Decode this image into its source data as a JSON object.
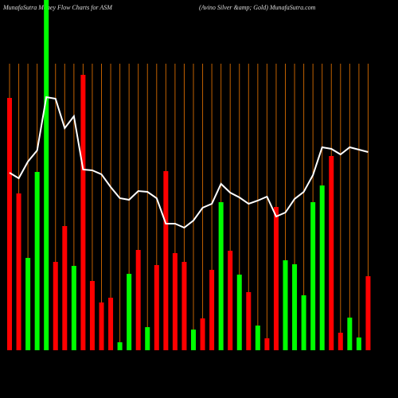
{
  "chart_data": {
    "type": "bar-line",
    "title": "MunafaSutra  Money Flow  Charts for ASM",
    "subtitle": "(Avino  Silver &amp; Gold) MunafaSutra.com",
    "categories": [
      null,
      null,
      null,
      null,
      null,
      null,
      null,
      null,
      null,
      null,
      null,
      null,
      null,
      null,
      null,
      null,
      null,
      null,
      null,
      null,
      null,
      null,
      null,
      null,
      null,
      null,
      null,
      null,
      null,
      null,
      null,
      null,
      null,
      null,
      null,
      null,
      null,
      null,
      null,
      null
    ],
    "ylim": [
      0,
      440
    ],
    "grid": true,
    "grid_color": "#c06000",
    "series": [
      {
        "type": "bar",
        "values": [
          317,
          197,
          116,
          224,
          440,
          111,
          156,
          106,
          346,
          87,
          60,
          66,
          10,
          96,
          126,
          29,
          107,
          225,
          122,
          111,
          26,
          40,
          101,
          186,
          125,
          95,
          73,
          31,
          15,
          180,
          113,
          108,
          69,
          186,
          207,
          244,
          22,
          41,
          16,
          93
        ],
        "colors": [
          "#ff0000",
          "#ff0000",
          "#00ff00",
          "#00ff00",
          "#00ff00",
          "#ff0000",
          "#ff0000",
          "#00ff00",
          "#ff0000",
          "#ff0000",
          "#ff0000",
          "#ff0000",
          "#00ff00",
          "#00ff00",
          "#ff0000",
          "#00ff00",
          "#ff0000",
          "#ff0000",
          "#ff0000",
          "#ff0000",
          "#00ff00",
          "#ff0000",
          "#ff0000",
          "#00ff00",
          "#ff0000",
          "#00ff00",
          "#ff0000",
          "#00ff00",
          "#ff0000",
          "#ff0000",
          "#00ff00",
          "#00ff00",
          "#00ff00",
          "#00ff00",
          "#00ff00",
          "#ff0000",
          "#ff0000",
          "#00ff00",
          "#00ff00",
          "#ff0000"
        ]
      },
      {
        "type": "line",
        "color": "#ffffff",
        "values": [
          223,
          216,
          237,
          251,
          318,
          316,
          279,
          294,
          227,
          226,
          221,
          205,
          191,
          189,
          200,
          199,
          191,
          159,
          159,
          154,
          163,
          179,
          184,
          209,
          198,
          192,
          184,
          188,
          193,
          168,
          173,
          190,
          199,
          220,
          255,
          253,
          246,
          255,
          252,
          249
        ]
      }
    ]
  }
}
